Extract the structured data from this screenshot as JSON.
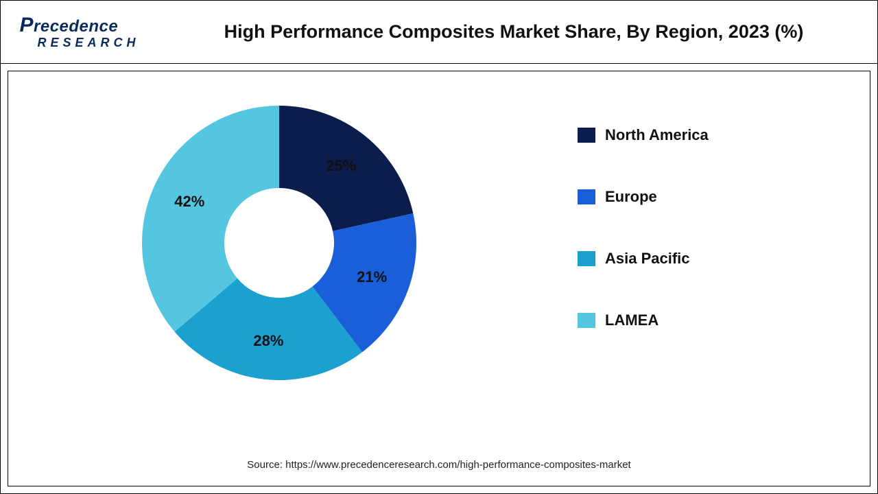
{
  "logo": {
    "line1": "recedence",
    "bigLetter": "P",
    "line2": "RESEARCH",
    "color": "#0b2a5c"
  },
  "title": "High Performance Composites Market Share, By Region, 2023 (%)",
  "chart": {
    "type": "donut",
    "inner_radius_pct": 40,
    "outer_radius_pct": 100,
    "start_angle_deg": 0,
    "background_color": "#ffffff",
    "slices": [
      {
        "label": "North America",
        "value": 25,
        "color": "#0b1d4d",
        "data_label": "25%"
      },
      {
        "label": "Europe",
        "value": 21,
        "color": "#1a5ed9",
        "data_label": "21%"
      },
      {
        "label": "Asia Pacific",
        "value": 28,
        "color": "#1ba0cf",
        "data_label": "28%"
      },
      {
        "label": "LAMEA",
        "value": 42,
        "color": "#55c6e0",
        "data_label": "42%"
      }
    ],
    "label_fontsize": 22,
    "label_fontweight": 700,
    "label_color": "#111111",
    "label_radius_pct": 72
  },
  "legend": {
    "position": "right",
    "fontsize": 22,
    "fontweight": 700,
    "swatch_w": 26,
    "swatch_h": 22,
    "gap": 64
  },
  "source": "Source: https://www.precedenceresearch.com/high-performance-composites-market"
}
